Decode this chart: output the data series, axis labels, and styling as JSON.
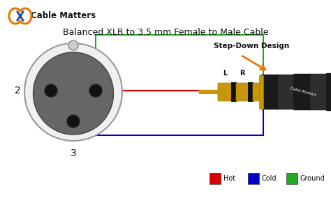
{
  "title": "Balanced XLR to 3.5 mm Female to Male Cable",
  "logo_text": "Cable Matters",
  "step_down_label": "Step-Down Design",
  "legend": [
    {
      "label": "Hot",
      "color": "#dd0000"
    },
    {
      "label": "Cold",
      "color": "#0000cc"
    },
    {
      "label": "Ground",
      "color": "#22aa22"
    }
  ],
  "bg_color": "#ffffff",
  "gold_color": "#c8960a",
  "wire_red": "#dd0000",
  "wire_blue": "#0000cc",
  "wire_green": "#22aa22",
  "xlr_outer_color": "#dddddd",
  "xlr_inner_color": "#555555",
  "black_body": "#1a1a1a",
  "dark_body": "#2e2e2e",
  "orange_arrow": "#e87700",
  "logo_orange": "#e87700",
  "logo_blue": "#1a4d99"
}
